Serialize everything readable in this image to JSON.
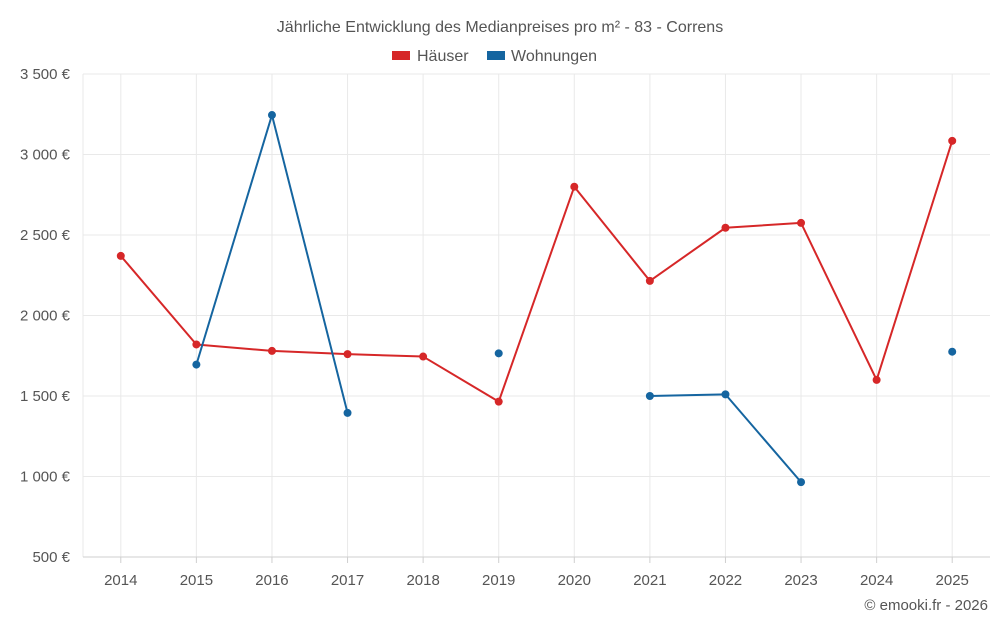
{
  "chart_data": {
    "type": "line",
    "title": "Jährliche Entwicklung des Medianpreises pro m² - 83 - Correns",
    "xlabel": "",
    "ylabel": "",
    "categories": [
      "2014",
      "2015",
      "2016",
      "2017",
      "2018",
      "2019",
      "2020",
      "2021",
      "2022",
      "2023",
      "2024",
      "2025"
    ],
    "ylim": [
      500,
      3500
    ],
    "yticks": [
      500,
      1000,
      1500,
      2000,
      2500,
      3000,
      3500
    ],
    "ytick_labels": [
      "500 €",
      "1 000 €",
      "1 500 €",
      "2 000 €",
      "2 500 €",
      "3 000 €",
      "3 500 €"
    ],
    "grid": true,
    "legend_position": "top-center",
    "series": [
      {
        "name": "Häuser",
        "color": "#d62728",
        "values": [
          2370,
          1820,
          1780,
          1760,
          1745,
          1465,
          2800,
          2215,
          2545,
          2575,
          1600,
          3085
        ]
      },
      {
        "name": "Wohnungen",
        "color": "#1565a0",
        "values": [
          null,
          1695,
          3245,
          1395,
          null,
          1765,
          null,
          1500,
          1510,
          965,
          null,
          1775
        ]
      }
    ],
    "credit": "© emooki.fr - 2026"
  }
}
